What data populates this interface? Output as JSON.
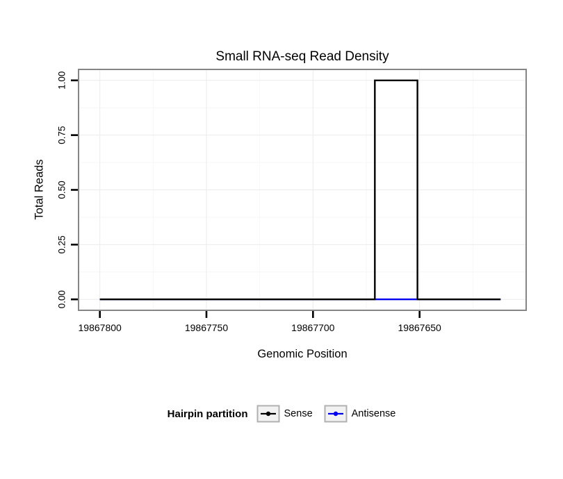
{
  "title": "Small RNA-seq Read Density",
  "axes": {
    "x_label": "Genomic Position",
    "y_label": "Total Reads",
    "x_tick_labels": [
      "19867800",
      "19867750",
      "19867700",
      "19867650"
    ],
    "y_tick_labels": [
      "0.00",
      "0.25",
      "0.50",
      "0.75",
      "1.00"
    ]
  },
  "legend": {
    "title": "Hairpin partition",
    "items": [
      {
        "label": "Sense",
        "color": "#000000"
      },
      {
        "label": "Antisense",
        "color": "#0000EE"
      }
    ]
  },
  "colors": {
    "sense": "#000000",
    "antisense": "#0000EE",
    "panel_border": "#858585",
    "grid_major": "#ebebeb",
    "grid_minor": "#f6f6f6",
    "legend_key_fill": "#f2f2f2",
    "legend_key_border": "#b0b0b0"
  },
  "chart_data": {
    "type": "line",
    "title": "Small RNA-seq Read Density",
    "xlabel": "Genomic Position",
    "ylabel": "Total Reads",
    "x_axis_reversed": true,
    "xlim": [
      19867810,
      19867600
    ],
    "ylim": [
      -0.05,
      1.05
    ],
    "x_tick_values": [
      19867800,
      19867750,
      19867700,
      19867650
    ],
    "y_tick_values": [
      0,
      0.25,
      0.5,
      0.75,
      1.0
    ],
    "grid": "major-and-minor-light",
    "legend_position": "bottom",
    "legend_title": "Hairpin partition",
    "series": [
      {
        "name": "Antisense",
        "color": "#0000EE",
        "points": [
          [
            19867800,
            0
          ],
          [
            19867612,
            0
          ]
        ]
      },
      {
        "name": "Sense",
        "color": "#000000",
        "points": [
          [
            19867800,
            0
          ],
          [
            19867671,
            0
          ],
          [
            19867671,
            1
          ],
          [
            19867651,
            1
          ],
          [
            19867651,
            0
          ],
          [
            19867612,
            0
          ]
        ]
      }
    ]
  }
}
